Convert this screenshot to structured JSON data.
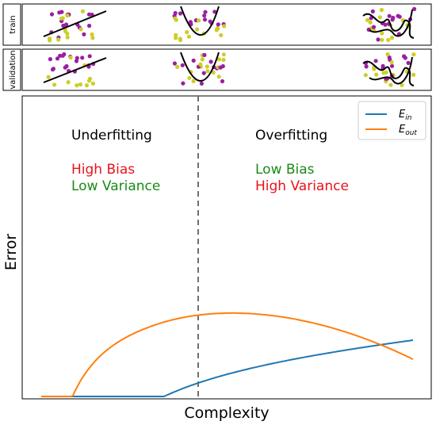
{
  "panels": {
    "train_label": "train",
    "validation_label": "validation"
  },
  "chart": {
    "xlabel": "Complexity",
    "ylabel": "Error",
    "underfitting": {
      "title": "Underfitting",
      "bias": "High Bias",
      "variance": "Low Variance"
    },
    "overfitting": {
      "title": "Overfitting",
      "bias": "Low Bias",
      "variance": "High Variance"
    },
    "legend": {
      "ein_base": "E",
      "ein_sub": "in",
      "eout_base": "E",
      "eout_sub": "out"
    }
  },
  "colors": {
    "ein": "#1f77b4",
    "eout": "#ff7f0e",
    "red_text": "#e8131b",
    "green_text": "#1a8a16",
    "purple_dot": "#9b1fa0",
    "yellow_dot": "#cdcd2a",
    "divider": "#707070"
  }
}
